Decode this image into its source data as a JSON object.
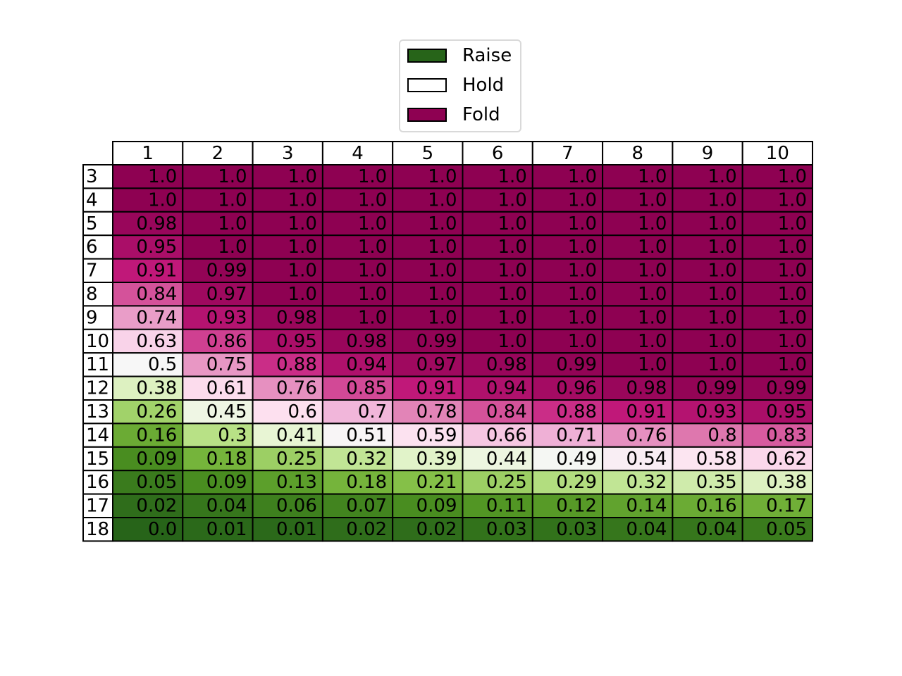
{
  "chart_data": {
    "type": "table",
    "columns": [
      "1",
      "2",
      "3",
      "4",
      "5",
      "6",
      "7",
      "8",
      "9",
      "10"
    ],
    "rows": [
      "3",
      "4",
      "5",
      "6",
      "7",
      "8",
      "9",
      "10",
      "11",
      "12",
      "13",
      "14",
      "15",
      "16",
      "17",
      "18"
    ],
    "cells": [
      [
        "1.0",
        "1.0",
        "1.0",
        "1.0",
        "1.0",
        "1.0",
        "1.0",
        "1.0",
        "1.0",
        "1.0"
      ],
      [
        "1.0",
        "1.0",
        "1.0",
        "1.0",
        "1.0",
        "1.0",
        "1.0",
        "1.0",
        "1.0",
        "1.0"
      ],
      [
        "0.98",
        "1.0",
        "1.0",
        "1.0",
        "1.0",
        "1.0",
        "1.0",
        "1.0",
        "1.0",
        "1.0"
      ],
      [
        "0.95",
        "1.0",
        "1.0",
        "1.0",
        "1.0",
        "1.0",
        "1.0",
        "1.0",
        "1.0",
        "1.0"
      ],
      [
        "0.91",
        "0.99",
        "1.0",
        "1.0",
        "1.0",
        "1.0",
        "1.0",
        "1.0",
        "1.0",
        "1.0"
      ],
      [
        "0.84",
        "0.97",
        "1.0",
        "1.0",
        "1.0",
        "1.0",
        "1.0",
        "1.0",
        "1.0",
        "1.0"
      ],
      [
        "0.74",
        "0.93",
        "0.98",
        "1.0",
        "1.0",
        "1.0",
        "1.0",
        "1.0",
        "1.0",
        "1.0"
      ],
      [
        "0.63",
        "0.86",
        "0.95",
        "0.98",
        "0.99",
        "1.0",
        "1.0",
        "1.0",
        "1.0",
        "1.0"
      ],
      [
        "0.5",
        "0.75",
        "0.88",
        "0.94",
        "0.97",
        "0.98",
        "0.99",
        "1.0",
        "1.0",
        "1.0"
      ],
      [
        "0.38",
        "0.61",
        "0.76",
        "0.85",
        "0.91",
        "0.94",
        "0.96",
        "0.98",
        "0.99",
        "0.99"
      ],
      [
        "0.26",
        "0.45",
        "0.6",
        "0.7",
        "0.78",
        "0.84",
        "0.88",
        "0.91",
        "0.93",
        "0.95"
      ],
      [
        "0.16",
        "0.3",
        "0.41",
        "0.51",
        "0.59",
        "0.66",
        "0.71",
        "0.76",
        "0.8",
        "0.83"
      ],
      [
        "0.09",
        "0.18",
        "0.25",
        "0.32",
        "0.39",
        "0.44",
        "0.49",
        "0.54",
        "0.58",
        "0.62"
      ],
      [
        "0.05",
        "0.09",
        "0.13",
        "0.18",
        "0.21",
        "0.25",
        "0.29",
        "0.32",
        "0.35",
        "0.38"
      ],
      [
        "0.02",
        "0.04",
        "0.06",
        "0.07",
        "0.09",
        "0.11",
        "0.12",
        "0.14",
        "0.16",
        "0.17"
      ],
      [
        "0.0",
        "0.01",
        "0.01",
        "0.02",
        "0.02",
        "0.03",
        "0.03",
        "0.04",
        "0.04",
        "0.05"
      ]
    ],
    "colormap": "PiYG reversed (0 = dark green, 0.5 = white, 1 = dark magenta)",
    "legend": [
      {
        "label": "Raise",
        "color": "#276419"
      },
      {
        "label": "Hold",
        "color": "#ffffff"
      },
      {
        "label": "Fold",
        "color": "#8e0152"
      }
    ],
    "legend_position": "top-center"
  }
}
